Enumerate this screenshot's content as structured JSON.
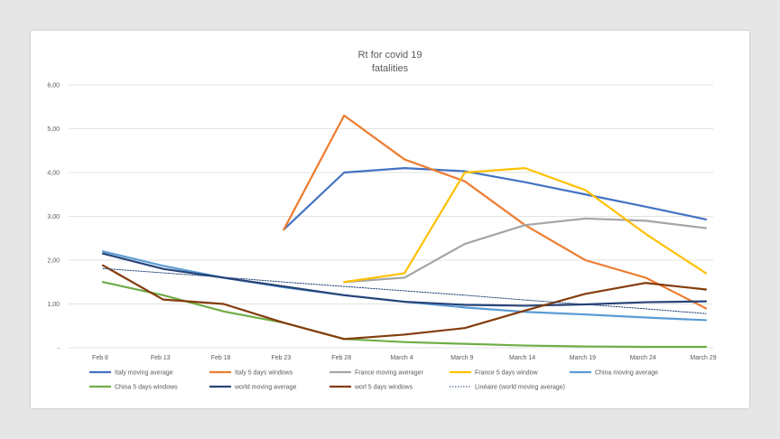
{
  "chart_data": {
    "type": "line",
    "title": "Rt for covid 19",
    "subtitle": "fatalities",
    "xlabel": "",
    "ylabel": "",
    "categories": [
      "Feb 8",
      "Feb 13",
      "Feb 18",
      "Feb 23",
      "Feb 28",
      "March 4",
      "March 9",
      "March 14",
      "March 19",
      "March 24",
      "March 29"
    ],
    "y_tick_labels": [
      "-",
      "1,00",
      "2,00",
      "3,00",
      "4,00",
      "5,00",
      "6,00"
    ],
    "ylim": [
      0,
      6
    ],
    "grid": true,
    "legend_position": "bottom",
    "series": [
      {
        "name": "Italy moving average",
        "color": "#4472c4",
        "dash": "",
        "values": [
          null,
          null,
          null,
          2.7,
          4.0,
          4.1,
          4.03,
          3.78,
          3.5,
          3.22,
          2.93
        ]
      },
      {
        "name": "Italy 5 days windows",
        "color": "#ed7d31",
        "dash": "",
        "values": [
          null,
          null,
          null,
          2.7,
          5.3,
          4.3,
          3.8,
          2.8,
          2.0,
          1.6,
          0.9
        ]
      },
      {
        "name": "France moving averager",
        "color": "#a5a5a5",
        "dash": "",
        "values": [
          null,
          null,
          null,
          null,
          1.5,
          1.6,
          2.37,
          2.8,
          2.95,
          2.9,
          2.73
        ]
      },
      {
        "name": "France 5 days window",
        "color": "#ffc000",
        "dash": "",
        "values": [
          null,
          null,
          null,
          null,
          1.5,
          1.7,
          4.0,
          4.1,
          3.6,
          2.6,
          1.7
        ]
      },
      {
        "name": "China moving average",
        "color": "#5b9bd5",
        "dash": "",
        "values": [
          2.2,
          1.87,
          1.6,
          1.38,
          1.2,
          1.05,
          0.92,
          0.82,
          0.76,
          0.69,
          0.63
        ]
      },
      {
        "name": "China 5 days windows",
        "color": "#70ad47",
        "dash": "",
        "values": [
          1.5,
          1.2,
          0.83,
          0.57,
          0.2,
          0.13,
          0.09,
          0.05,
          0.03,
          0.02,
          0.02
        ]
      },
      {
        "name": "world moving average",
        "color": "#264478",
        "dash": "",
        "values": [
          2.15,
          1.8,
          1.6,
          1.4,
          1.2,
          1.05,
          0.98,
          0.96,
          0.99,
          1.04,
          1.06
        ]
      },
      {
        "name": "worl 5 days windows",
        "color": "#843c0c",
        "dash": "",
        "values": [
          1.88,
          1.1,
          1.0,
          0.57,
          0.2,
          0.3,
          0.45,
          0.85,
          1.23,
          1.48,
          1.33
        ]
      },
      {
        "name": "Linéaire (world moving average)",
        "color": "#264478",
        "dash": "1.5,1.5",
        "values": [
          1.81,
          1.71,
          1.61,
          1.5,
          1.4,
          1.3,
          1.2,
          1.09,
          0.99,
          0.89,
          0.78
        ]
      }
    ]
  }
}
